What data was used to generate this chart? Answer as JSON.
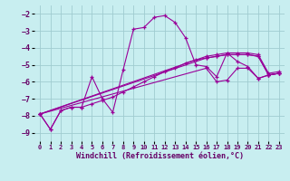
{
  "xlabel": "Windchill (Refroidissement éolien,°C)",
  "xlim": [
    -0.5,
    23.5
  ],
  "ylim": [
    -9.5,
    -1.5
  ],
  "yticks": [
    -9,
    -8,
    -7,
    -6,
    -5,
    -4,
    -3,
    -2
  ],
  "xticks": [
    0,
    1,
    2,
    3,
    4,
    5,
    6,
    7,
    8,
    9,
    10,
    11,
    12,
    13,
    14,
    15,
    16,
    17,
    18,
    19,
    20,
    21,
    22,
    23
  ],
  "background_color": "#c8eef0",
  "grid_color": "#a0ccd0",
  "line_color": "#990099",
  "lines": [
    [
      -7.9,
      -8.8,
      -7.7,
      -7.5,
      -7.5,
      -5.7,
      -7.0,
      -7.8,
      -5.3,
      -2.9,
      -2.8,
      -2.2,
      -2.1,
      -2.5,
      -3.4,
      -5.0,
      -5.1,
      -5.7,
      -4.3,
      -4.8,
      -5.1,
      -5.8,
      -5.6,
      -5.5
    ],
    [
      -7.9,
      null,
      null,
      null,
      null,
      null,
      null,
      null,
      null,
      null,
      null,
      null,
      null,
      null,
      null,
      null,
      -5.2,
      -6.0,
      -5.9,
      -5.2,
      -5.2,
      -5.8,
      -5.6,
      -5.5
    ],
    [
      -7.9,
      -8.8,
      -7.7,
      -7.5,
      -7.5,
      -7.3,
      -7.1,
      -6.9,
      -6.6,
      -6.3,
      -6.0,
      -5.7,
      -5.4,
      -5.2,
      -4.9,
      -4.7,
      -4.6,
      -4.5,
      -4.4,
      -4.4,
      -4.4,
      -4.5,
      -5.6,
      -5.5
    ],
    [
      -7.9,
      null,
      null,
      null,
      null,
      null,
      null,
      null,
      null,
      null,
      null,
      null,
      null,
      null,
      null,
      null,
      -4.6,
      -4.5,
      -4.4,
      -4.4,
      -4.4,
      -4.5,
      -5.6,
      -5.5
    ],
    [
      -7.9,
      null,
      null,
      null,
      null,
      null,
      null,
      null,
      null,
      null,
      null,
      null,
      null,
      null,
      null,
      null,
      -4.5,
      -4.4,
      -4.3,
      -4.3,
      -4.3,
      -4.4,
      -5.5,
      -5.4
    ]
  ]
}
